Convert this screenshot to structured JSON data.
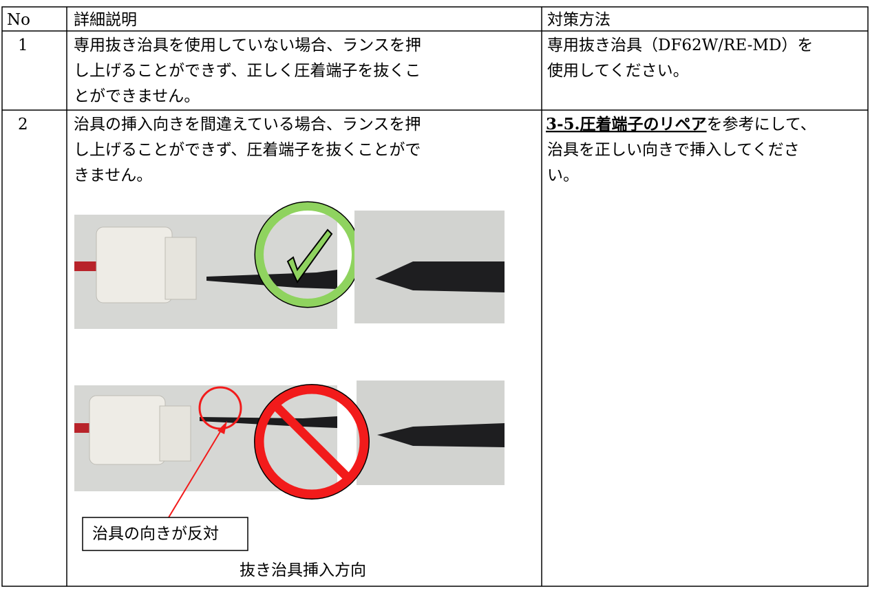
{
  "table": {
    "headers": [
      "No",
      "詳細説明",
      "対策方法"
    ],
    "rows": [
      {
        "no": "1",
        "detail": [
          "専用抜き治具を使用していない場合、ランスを押",
          "し上げることができず、正しく圧着端子を抜くこ",
          "とができません。"
        ],
        "measure": [
          "専用抜き治具（DF62W/RE-MD）を",
          "使用してください。"
        ]
      },
      {
        "no": "2",
        "detail": [
          "治具の挿入向きを間違えている場合、ランスを押",
          "し上げることができず、圧着端子を抜くことがで",
          "きません。"
        ],
        "measure_link": "3-5.圧着端子のリペア",
        "measure": [
          "を参考にして、",
          "治具を正しい向きで挿入してくださ",
          "い。"
        ],
        "figure": {
          "callout": "治具の向きが反対",
          "caption": "抜き治具挿入方向"
        }
      }
    ]
  }
}
